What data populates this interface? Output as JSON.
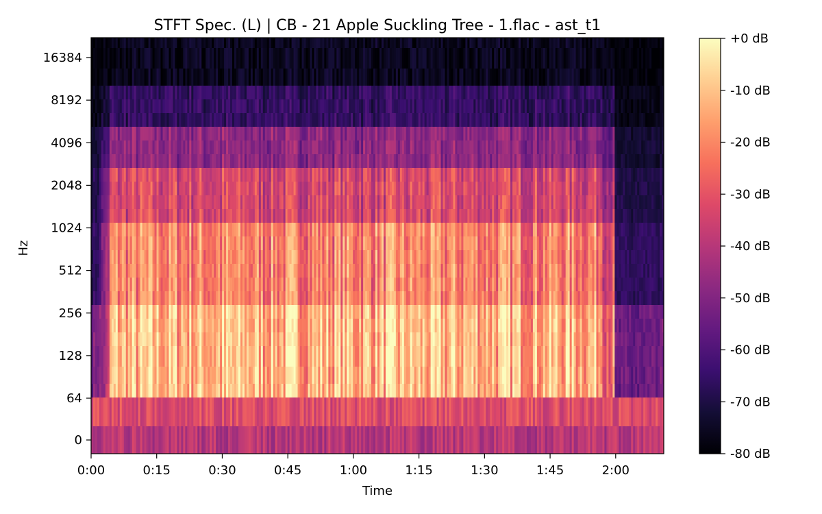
{
  "chart_data": {
    "type": "heatmap",
    "title": "STFT Spec. (L) | CB - 21 Apple Suckling Tree - 1.flac - ast_t1",
    "xlabel": "Time",
    "ylabel": "Hz",
    "x_ticks": [
      "0:00",
      "0:15",
      "0:30",
      "0:45",
      "1:00",
      "1:15",
      "1:30",
      "1:45",
      "2:00"
    ],
    "x_tick_seconds": [
      0,
      15,
      30,
      45,
      60,
      75,
      90,
      105,
      120
    ],
    "xlim_seconds": [
      0,
      131
    ],
    "y_scale": "log2",
    "y_ticks": [
      "0",
      "64",
      "128",
      "256",
      "512",
      "1024",
      "2048",
      "4096",
      "8192",
      "16384"
    ],
    "y_tick_hz": [
      0,
      64,
      128,
      256,
      512,
      1024,
      2048,
      4096,
      8192,
      16384
    ],
    "colorbar": {
      "colormap": "magma",
      "range_db": [
        -80,
        0
      ],
      "ticks": [
        "+0 dB",
        "-10 dB",
        "-20 dB",
        "-30 dB",
        "-40 dB",
        "-50 dB",
        "-60 dB",
        "-70 dB",
        "-80 dB"
      ],
      "tick_db": [
        0,
        -10,
        -20,
        -30,
        -40,
        -50,
        -60,
        -70,
        -80
      ]
    },
    "grid": false,
    "colors": {
      "magma": [
        "#000004",
        "#140e36",
        "#3b0f70",
        "#641a80",
        "#8c2981",
        "#b73779",
        "#de4968",
        "#f7705c",
        "#fe9f6d",
        "#fecf92",
        "#fcfdbf"
      ]
    }
  }
}
